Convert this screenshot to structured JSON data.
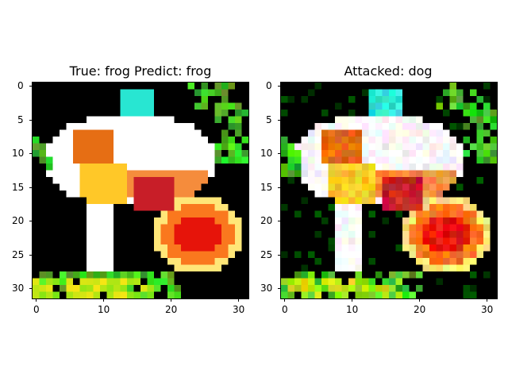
{
  "panels": [
    {
      "title": "True: frog  Predict: frog",
      "xticks": [
        "0",
        "10",
        "20",
        "30"
      ],
      "yticks": [
        "0",
        "5",
        "10",
        "15",
        "20",
        "25",
        "30"
      ]
    },
    {
      "title": "Attacked: dog",
      "xticks": [
        "0",
        "10",
        "20",
        "30"
      ],
      "yticks": [
        "0",
        "5",
        "10",
        "15",
        "20",
        "25",
        "30"
      ]
    }
  ]
}
